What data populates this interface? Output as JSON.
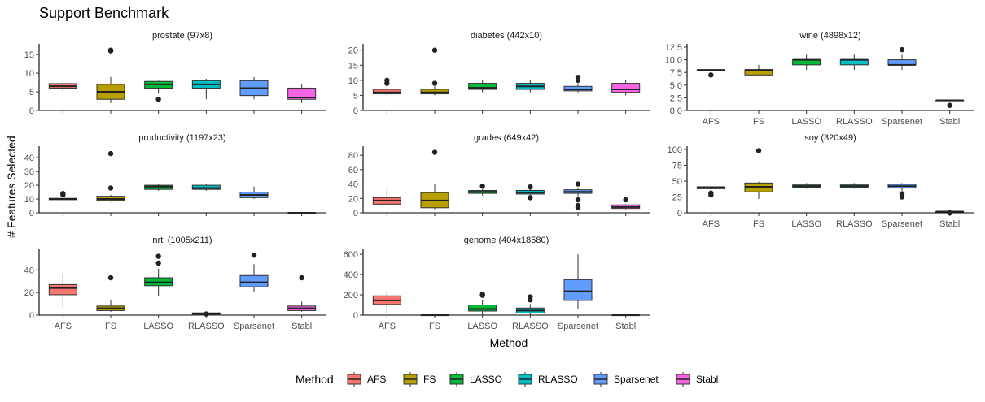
{
  "chart_data": {
    "type": "boxplot",
    "title": "Support Benchmark",
    "xlabel": "Method",
    "ylabel": "# Features Selected",
    "methods": [
      "AFS",
      "FS",
      "LASSO",
      "RLASSO",
      "Sparsenet",
      "Stabl"
    ],
    "colors": {
      "AFS": "#F8766D",
      "FS": "#B79F00",
      "LASSO": "#00BA38",
      "RLASSO": "#00BFC4",
      "Sparsenet": "#619CFF",
      "Stabl": "#F564E3"
    },
    "legend": {
      "title": "Method",
      "position": "bottom",
      "labels": [
        "AFS",
        "FS",
        "LASSO",
        "RLASSO",
        "Sparsenet",
        "Stabl"
      ]
    },
    "panels": [
      {
        "title": "prostate (97x8)",
        "ylim": [
          0,
          17
        ],
        "yticks": [
          0,
          5,
          10,
          15
        ],
        "ytick_labels": [
          "0",
          "5",
          "10",
          "15"
        ],
        "boxes": {
          "AFS": {
            "min": 5,
            "q1": 6,
            "median": 6.5,
            "q3": 7.2,
            "max": 8,
            "outliers": []
          },
          "FS": {
            "min": 2,
            "q1": 3,
            "median": 5,
            "q3": 7,
            "max": 9,
            "outliers": [
              16,
              16.2
            ]
          },
          "LASSO": {
            "min": 4.5,
            "q1": 6,
            "median": 7,
            "q3": 7.8,
            "max": 8,
            "outliers": [
              3
            ]
          },
          "RLASSO": {
            "min": 3,
            "q1": 6,
            "median": 7,
            "q3": 8,
            "max": 8.5,
            "outliers": []
          },
          "Sparsenet": {
            "min": 3,
            "q1": 4,
            "median": 6,
            "q3": 8,
            "max": 9,
            "outliers": []
          },
          "Stabl": {
            "min": 2,
            "q1": 3,
            "median": 3.5,
            "q3": 6,
            "max": 7,
            "outliers": []
          }
        }
      },
      {
        "title": "diabetes (442x10)",
        "ylim": [
          0,
          21
        ],
        "yticks": [
          0,
          5,
          10,
          15,
          20
        ],
        "ytick_labels": [
          "0",
          "5",
          "10",
          "15",
          "20"
        ],
        "boxes": {
          "AFS": {
            "min": 5,
            "q1": 5.5,
            "median": 6,
            "q3": 7,
            "max": 8,
            "outliers": [
              9,
              10
            ]
          },
          "FS": {
            "min": 5,
            "q1": 5.5,
            "median": 6,
            "q3": 7,
            "max": 8,
            "outliers": [
              9,
              20
            ]
          },
          "LASSO": {
            "min": 6,
            "q1": 7,
            "median": 7.5,
            "q3": 9,
            "max": 10,
            "outliers": []
          },
          "RLASSO": {
            "min": 6,
            "q1": 7,
            "median": 8,
            "q3": 9,
            "max": 10,
            "outliers": []
          },
          "Sparsenet": {
            "min": 6,
            "q1": 6.5,
            "median": 7,
            "q3": 8,
            "max": 9,
            "outliers": [
              10,
              11
            ]
          },
          "Stabl": {
            "min": 5,
            "q1": 6,
            "median": 7,
            "q3": 9,
            "max": 10,
            "outliers": []
          }
        }
      },
      {
        "title": "wine (4898x12)",
        "ylim": [
          0,
          12.5
        ],
        "yticks": [
          0,
          2.5,
          5,
          7.5,
          10,
          12.5
        ],
        "ytick_labels": [
          "0.0",
          "2.5",
          "5.0",
          "7.5",
          "10.0",
          "12.5"
        ],
        "boxes": {
          "AFS": {
            "min": 8,
            "q1": 8,
            "median": 8,
            "q3": 8,
            "max": 8,
            "outliers": [
              7
            ]
          },
          "FS": {
            "min": 7,
            "q1": 7,
            "median": 8,
            "q3": 8,
            "max": 9,
            "outliers": []
          },
          "LASSO": {
            "min": 8,
            "q1": 9,
            "median": 10,
            "q3": 10,
            "max": 11,
            "outliers": []
          },
          "RLASSO": {
            "min": 8,
            "q1": 9,
            "median": 10,
            "q3": 10,
            "max": 11,
            "outliers": []
          },
          "Sparsenet": {
            "min": 8,
            "q1": 9,
            "median": 9,
            "q3": 10,
            "max": 11,
            "outliers": [
              12
            ]
          },
          "Stabl": {
            "min": 2,
            "q1": 2,
            "median": 2,
            "q3": 2,
            "max": 2,
            "outliers": [
              1
            ]
          }
        }
      },
      {
        "title": "productivity (1197x23)",
        "ylim": [
          0,
          46
        ],
        "yticks": [
          0,
          10,
          20,
          30,
          40
        ],
        "ytick_labels": [
          "0",
          "10",
          "20",
          "30",
          "40"
        ],
        "boxes": {
          "AFS": {
            "min": 9,
            "q1": 9.5,
            "median": 10,
            "q3": 10.5,
            "max": 11,
            "outliers": [
              13,
              14
            ]
          },
          "FS": {
            "min": 8,
            "q1": 9,
            "median": 10,
            "q3": 12,
            "max": 13,
            "outliers": [
              18,
              43
            ]
          },
          "LASSO": {
            "min": 16,
            "q1": 17,
            "median": 19,
            "q3": 20,
            "max": 21,
            "outliers": []
          },
          "RLASSO": {
            "min": 16,
            "q1": 17,
            "median": 18,
            "q3": 20,
            "max": 21,
            "outliers": []
          },
          "Sparsenet": {
            "min": 10,
            "q1": 11,
            "median": 13,
            "q3": 15,
            "max": 19,
            "outliers": []
          },
          "Stabl": {
            "min": 0,
            "q1": 0,
            "median": 0,
            "q3": 0,
            "max": 0,
            "outliers": []
          }
        }
      },
      {
        "title": "grades (649x42)",
        "ylim": [
          0,
          88
        ],
        "yticks": [
          0,
          20,
          40,
          60,
          80
        ],
        "ytick_labels": [
          "0",
          "20",
          "40",
          "60",
          "80"
        ],
        "boxes": {
          "AFS": {
            "min": 10,
            "q1": 12,
            "median": 17,
            "q3": 21,
            "max": 32,
            "outliers": []
          },
          "FS": {
            "min": 5,
            "q1": 7,
            "median": 17,
            "q3": 28,
            "max": 40,
            "outliers": [
              84
            ]
          },
          "LASSO": {
            "min": 24,
            "q1": 27,
            "median": 29,
            "q3": 31,
            "max": 33,
            "outliers": [
              37
            ]
          },
          "RLASSO": {
            "min": 25,
            "q1": 26,
            "median": 28,
            "q3": 31,
            "max": 33,
            "outliers": [
              21,
              36
            ]
          },
          "Sparsenet": {
            "min": 23,
            "q1": 27,
            "median": 29,
            "q3": 32,
            "max": 35,
            "outliers": [
              7,
              10,
              18,
              40
            ]
          },
          "Stabl": {
            "min": 5,
            "q1": 6,
            "median": 8,
            "q3": 11,
            "max": 12,
            "outliers": [
              18
            ]
          }
        }
      },
      {
        "title": "soy (320x49)",
        "ylim": [
          0,
          100
        ],
        "yticks": [
          0,
          25,
          50,
          75,
          100
        ],
        "ytick_labels": [
          "0",
          "25",
          "50",
          "75",
          "100"
        ],
        "boxes": {
          "AFS": {
            "min": 35,
            "q1": 38,
            "median": 40,
            "q3": 41,
            "max": 43,
            "outliers": [
              28,
              31
            ]
          },
          "FS": {
            "min": 22,
            "q1": 33,
            "median": 41,
            "q3": 47,
            "max": 49,
            "outliers": [
              98
            ]
          },
          "LASSO": {
            "min": 38,
            "q1": 40,
            "median": 42,
            "q3": 44,
            "max": 47,
            "outliers": []
          },
          "RLASSO": {
            "min": 38,
            "q1": 40,
            "median": 42,
            "q3": 44,
            "max": 47,
            "outliers": []
          },
          "Sparsenet": {
            "min": 35,
            "q1": 39,
            "median": 42,
            "q3": 45,
            "max": 47,
            "outliers": [
              25,
              30
            ]
          },
          "Stabl": {
            "min": 0,
            "q1": 1,
            "median": 2,
            "q3": 2,
            "max": 3,
            "outliers": [
              0
            ]
          }
        }
      },
      {
        "title": "nrti (1005x211)",
        "ylim": [
          0,
          56
        ],
        "yticks": [
          0,
          20,
          40
        ],
        "ytick_labels": [
          "0",
          "20",
          "40"
        ],
        "boxes": {
          "AFS": {
            "min": 7,
            "q1": 18,
            "median": 24,
            "q3": 27,
            "max": 36,
            "outliers": []
          },
          "FS": {
            "min": 3,
            "q1": 4,
            "median": 6,
            "q3": 8,
            "max": 13,
            "outliers": [
              33
            ]
          },
          "LASSO": {
            "min": 17,
            "q1": 26,
            "median": 29,
            "q3": 33,
            "max": 41,
            "outliers": [
              46,
              52
            ]
          },
          "RLASSO": {
            "min": 0,
            "q1": 0,
            "median": 1,
            "q3": 2,
            "max": 3,
            "outliers": [
              1
            ]
          },
          "Sparsenet": {
            "min": 20,
            "q1": 25,
            "median": 29,
            "q3": 35,
            "max": 45,
            "outliers": [
              53
            ]
          },
          "Stabl": {
            "min": 3,
            "q1": 4,
            "median": 6,
            "q3": 8,
            "max": 12,
            "outliers": [
              33
            ]
          }
        }
      },
      {
        "title": "genome (404x18580)",
        "ylim": [
          0,
          625
        ],
        "yticks": [
          0,
          200,
          400,
          600
        ],
        "ytick_labels": [
          "0",
          "200",
          "400",
          "600"
        ],
        "boxes": {
          "AFS": {
            "min": 20,
            "q1": 105,
            "median": 145,
            "q3": 190,
            "max": 240,
            "outliers": []
          },
          "FS": {
            "min": 0,
            "q1": 0,
            "median": 0,
            "q3": 0,
            "max": 5,
            "outliers": []
          },
          "LASSO": {
            "min": 5,
            "q1": 40,
            "median": 60,
            "q3": 100,
            "max": 150,
            "outliers": [
              195,
              205
            ]
          },
          "RLASSO": {
            "min": 5,
            "q1": 20,
            "median": 45,
            "q3": 70,
            "max": 110,
            "outliers": [
              150,
              180
            ]
          },
          "Sparsenet": {
            "min": 60,
            "q1": 145,
            "median": 235,
            "q3": 350,
            "max": 600,
            "outliers": []
          },
          "Stabl": {
            "min": 0,
            "q1": 0,
            "median": 0,
            "q3": 0,
            "max": 0,
            "outliers": []
          }
        }
      }
    ]
  }
}
